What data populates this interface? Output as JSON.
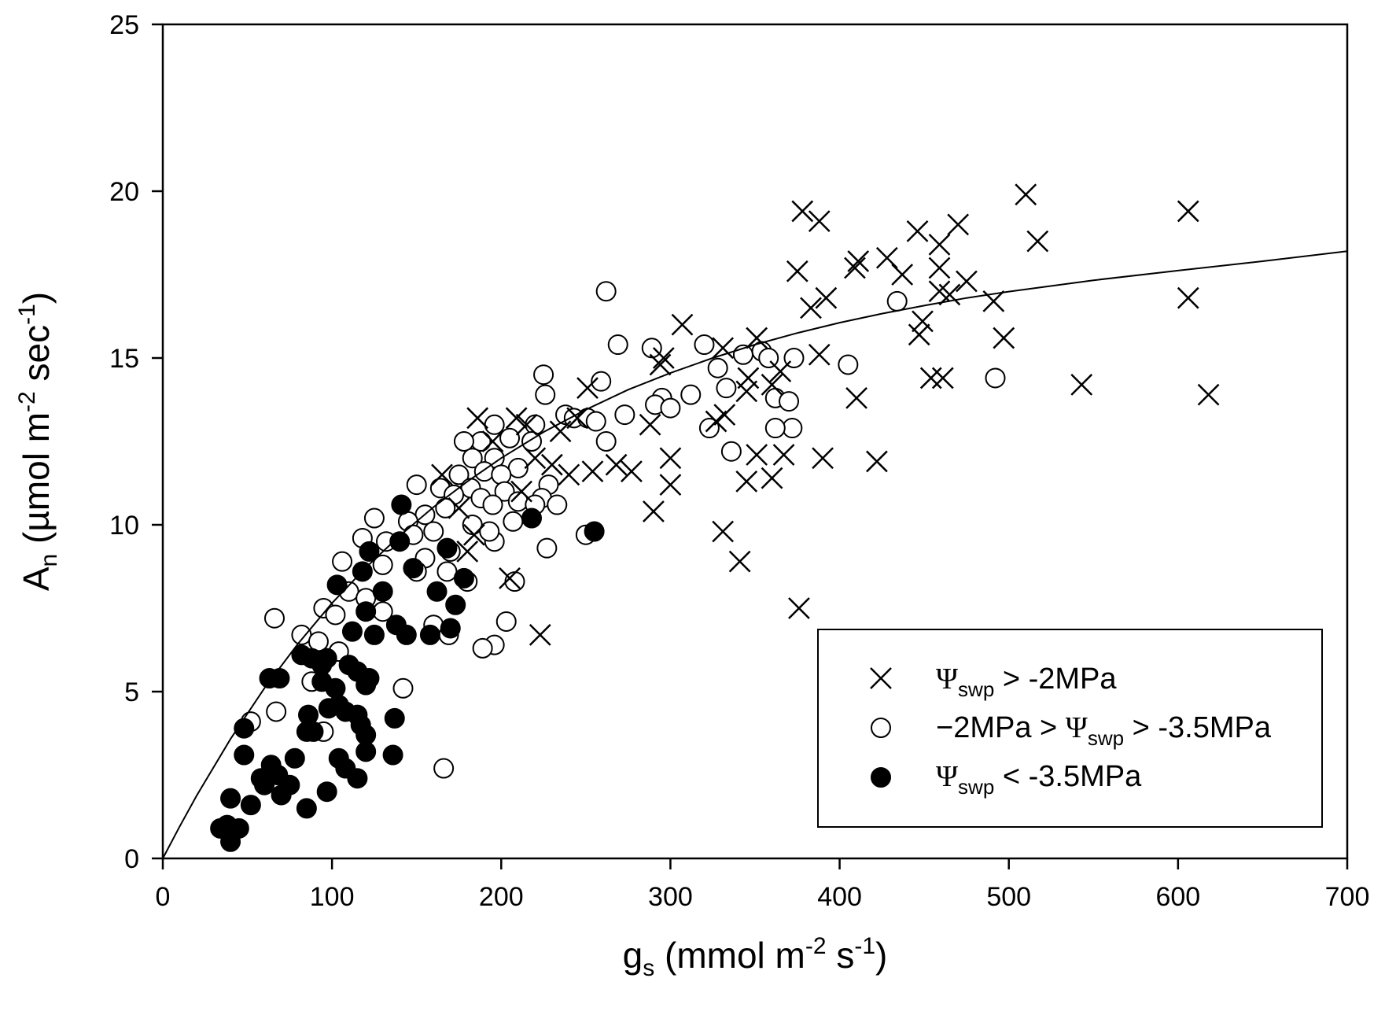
{
  "chart_data": {
    "type": "scatter",
    "title": "",
    "xlabel": {
      "main": "g",
      "sub": "s",
      "unit_a": " (mmol m",
      "sup_a": "-2",
      "unit_b": " s",
      "sup_b": "-1",
      "unit_c": ")"
    },
    "ylabel": {
      "main": "A",
      "sub": "n",
      "unit_a": " (µmol m",
      "sup_a": "-2",
      "unit_b": " sec",
      "sup_b": "-1",
      "unit_c": ")"
    },
    "xlim": [
      0,
      700
    ],
    "ylim": [
      0,
      25
    ],
    "xticks": [
      0,
      100,
      200,
      300,
      400,
      500,
      600,
      700
    ],
    "yticks": [
      0,
      5,
      10,
      15,
      20,
      25
    ],
    "grid": false,
    "legend_position": "bottom-right",
    "fit_curve": {
      "name": "fit",
      "x": [
        0,
        10,
        20,
        40,
        60,
        80,
        100,
        120,
        140,
        160,
        180,
        200,
        225,
        250,
        275,
        300,
        325,
        350,
        375,
        400,
        425,
        450,
        475,
        500,
        550,
        600,
        650,
        700
      ],
      "y": [
        0,
        0.96,
        1.88,
        3.58,
        5.1,
        6.44,
        7.65,
        8.72,
        9.67,
        10.53,
        11.3,
        12.0,
        12.78,
        13.45,
        14.05,
        14.55,
        15.0,
        15.4,
        15.75,
        16.06,
        16.33,
        16.57,
        16.8,
        16.99,
        17.33,
        17.62,
        17.9,
        18.2
      ]
    },
    "series": [
      {
        "name": "Ψswp > -2MPa",
        "label": {
          "sym": "Ψ",
          "sub": "swp",
          "rest": " > -2MPa"
        },
        "marker": "x",
        "points": [
          [
            510,
            19.9
          ],
          [
            378,
            19.4
          ],
          [
            606,
            19.4
          ],
          [
            388,
            19.1
          ],
          [
            470,
            19.0
          ],
          [
            446,
            18.8
          ],
          [
            517,
            18.5
          ],
          [
            459,
            18.4
          ],
          [
            428,
            18.0
          ],
          [
            411,
            17.9
          ],
          [
            409,
            17.7
          ],
          [
            375,
            17.6
          ],
          [
            459,
            17.7
          ],
          [
            437,
            17.5
          ],
          [
            475,
            17.3
          ],
          [
            459,
            17.0
          ],
          [
            465,
            16.9
          ],
          [
            392,
            16.8
          ],
          [
            606,
            16.8
          ],
          [
            383,
            16.5
          ],
          [
            491,
            16.7
          ],
          [
            449,
            16.1
          ],
          [
            307,
            16.0
          ],
          [
            447,
            15.7
          ],
          [
            497,
            15.6
          ],
          [
            351,
            15.6
          ],
          [
            331,
            15.3
          ],
          [
            388,
            15.1
          ],
          [
            296,
            15.0
          ],
          [
            294,
            14.8
          ],
          [
            365,
            14.6
          ],
          [
            346,
            14.4
          ],
          [
            454,
            14.4
          ],
          [
            461,
            14.4
          ],
          [
            543,
            14.2
          ],
          [
            360,
            14.2
          ],
          [
            345,
            14.0
          ],
          [
            618,
            13.9
          ],
          [
            410,
            13.8
          ],
          [
            251,
            14.1
          ],
          [
            245,
            13.2
          ],
          [
            288,
            13.0
          ],
          [
            332,
            13.3
          ],
          [
            327,
            13.1
          ],
          [
            209,
            13.2
          ],
          [
            215,
            13.0
          ],
          [
            186,
            13.2
          ],
          [
            230,
            11.8
          ],
          [
            240,
            11.5
          ],
          [
            268,
            11.8
          ],
          [
            277,
            11.6
          ],
          [
            254,
            11.6
          ],
          [
            300,
            12.0
          ],
          [
            351,
            12.1
          ],
          [
            367,
            12.1
          ],
          [
            390,
            12.0
          ],
          [
            422,
            11.9
          ],
          [
            345,
            11.3
          ],
          [
            360,
            11.4
          ],
          [
            300,
            11.2
          ],
          [
            212,
            11.0
          ],
          [
            184,
            9.7
          ],
          [
            180,
            9.2
          ],
          [
            290,
            10.4
          ],
          [
            331,
            9.8
          ],
          [
            341,
            8.9
          ],
          [
            205,
            8.4
          ],
          [
            376,
            7.5
          ],
          [
            223,
            6.7
          ],
          [
            165,
            11.5
          ],
          [
            175,
            10.5
          ],
          [
            195,
            12.5
          ],
          [
            220,
            12.0
          ],
          [
            235,
            12.8
          ]
        ]
      },
      {
        "name": "−2MPa > Ψswp > -3.5MPa",
        "label": {
          "pre": "−2MPa > ",
          "sym": "Ψ",
          "sub": "swp",
          "rest": " > -3.5MPa"
        },
        "marker": "open-circle",
        "points": [
          [
            262,
            17.0
          ],
          [
            434,
            16.7
          ],
          [
            269,
            15.4
          ],
          [
            289,
            15.3
          ],
          [
            320,
            15.4
          ],
          [
            343,
            15.1
          ],
          [
            354,
            15.2
          ],
          [
            358,
            15.0
          ],
          [
            373,
            15.0
          ],
          [
            405,
            14.8
          ],
          [
            328,
            14.7
          ],
          [
            492,
            14.4
          ],
          [
            225,
            14.5
          ],
          [
            259,
            14.3
          ],
          [
            333,
            14.1
          ],
          [
            312,
            13.9
          ],
          [
            226,
            13.9
          ],
          [
            295,
            13.8
          ],
          [
            362,
            13.8
          ],
          [
            370,
            13.7
          ],
          [
            291,
            13.6
          ],
          [
            300,
            13.5
          ],
          [
            238,
            13.3
          ],
          [
            243,
            13.2
          ],
          [
            251,
            13.2
          ],
          [
            256,
            13.1
          ],
          [
            273,
            13.3
          ],
          [
            372,
            12.9
          ],
          [
            362,
            12.9
          ],
          [
            323,
            12.9
          ],
          [
            220,
            13.0
          ],
          [
            196,
            13.0
          ],
          [
            218,
            12.5
          ],
          [
            205,
            12.6
          ],
          [
            188,
            12.5
          ],
          [
            178,
            12.5
          ],
          [
            262,
            12.5
          ],
          [
            336,
            12.2
          ],
          [
            183,
            12.0
          ],
          [
            196,
            12.0
          ],
          [
            210,
            11.7
          ],
          [
            190,
            11.6
          ],
          [
            175,
            11.5
          ],
          [
            200,
            11.5
          ],
          [
            228,
            11.2
          ],
          [
            150,
            11.2
          ],
          [
            164,
            11.1
          ],
          [
            182,
            11.1
          ],
          [
            202,
            11.0
          ],
          [
            172,
            10.9
          ],
          [
            188,
            10.8
          ],
          [
            210,
            10.7
          ],
          [
            224,
            10.8
          ],
          [
            167,
            10.5
          ],
          [
            195,
            10.6
          ],
          [
            220,
            10.6
          ],
          [
            233,
            10.6
          ],
          [
            155,
            10.3
          ],
          [
            145,
            10.1
          ],
          [
            125,
            10.2
          ],
          [
            183,
            10.0
          ],
          [
            207,
            10.1
          ],
          [
            160,
            9.8
          ],
          [
            148,
            9.7
          ],
          [
            118,
            9.6
          ],
          [
            132,
            9.5
          ],
          [
            196,
            9.5
          ],
          [
            193,
            9.8
          ],
          [
            227,
            9.3
          ],
          [
            250,
            9.7
          ],
          [
            170,
            9.2
          ],
          [
            155,
            9.0
          ],
          [
            106,
            8.9
          ],
          [
            150,
            8.6
          ],
          [
            130,
            8.8
          ],
          [
            180,
            8.3
          ],
          [
            168,
            8.6
          ],
          [
            208,
            8.3
          ],
          [
            110,
            8.0
          ],
          [
            120,
            7.8
          ],
          [
            95,
            7.5
          ],
          [
            102,
            7.3
          ],
          [
            130,
            7.4
          ],
          [
            203,
            7.1
          ],
          [
            160,
            7.0
          ],
          [
            66,
            7.2
          ],
          [
            82,
            6.7
          ],
          [
            92,
            6.5
          ],
          [
            169,
            6.7
          ],
          [
            196,
            6.4
          ],
          [
            189,
            6.3
          ],
          [
            104,
            6.2
          ],
          [
            88,
            5.3
          ],
          [
            142,
            5.1
          ],
          [
            67,
            4.4
          ],
          [
            95,
            3.8
          ],
          [
            52,
            4.1
          ],
          [
            166,
            2.7
          ]
        ]
      },
      {
        "name": "Ψswp < -3.5MPa",
        "label": {
          "sym": "Ψ",
          "sub": "swp",
          "rest": " < -3.5MPa"
        },
        "marker": "filled-circle",
        "points": [
          [
            141,
            10.6
          ],
          [
            140,
            9.5
          ],
          [
            122,
            9.2
          ],
          [
            218,
            10.2
          ],
          [
            255,
            9.8
          ],
          [
            168,
            9.3
          ],
          [
            118,
            8.6
          ],
          [
            148,
            8.7
          ],
          [
            178,
            8.4
          ],
          [
            103,
            8.2
          ],
          [
            130,
            8.0
          ],
          [
            162,
            8.0
          ],
          [
            173,
            7.6
          ],
          [
            120,
            7.4
          ],
          [
            138,
            7.0
          ],
          [
            125,
            6.7
          ],
          [
            112,
            6.8
          ],
          [
            144,
            6.7
          ],
          [
            158,
            6.7
          ],
          [
            170,
            6.9
          ],
          [
            82,
            6.1
          ],
          [
            88,
            6.0
          ],
          [
            94,
            5.8
          ],
          [
            97,
            6.0
          ],
          [
            110,
            5.8
          ],
          [
            115,
            5.6
          ],
          [
            120,
            5.2
          ],
          [
            122,
            5.4
          ],
          [
            94,
            5.3
          ],
          [
            102,
            5.1
          ],
          [
            63,
            5.4
          ],
          [
            69,
            5.4
          ],
          [
            86,
            4.3
          ],
          [
            108,
            4.4
          ],
          [
            98,
            4.5
          ],
          [
            104,
            4.6
          ],
          [
            115,
            4.3
          ],
          [
            117,
            4.0
          ],
          [
            137,
            4.2
          ],
          [
            85,
            3.8
          ],
          [
            89,
            3.8
          ],
          [
            48,
            3.9
          ],
          [
            120,
            3.7
          ],
          [
            136,
            3.1
          ],
          [
            120,
            3.2
          ],
          [
            104,
            3.0
          ],
          [
            78,
            3.0
          ],
          [
            48,
            3.1
          ],
          [
            64,
            2.8
          ],
          [
            68,
            2.5
          ],
          [
            58,
            2.4
          ],
          [
            75,
            2.2
          ],
          [
            60,
            2.2
          ],
          [
            115,
            2.4
          ],
          [
            70,
            1.9
          ],
          [
            52,
            1.6
          ],
          [
            40,
            1.8
          ],
          [
            85,
            1.5
          ],
          [
            97,
            2.0
          ],
          [
            34,
            0.9
          ],
          [
            38,
            1.0
          ],
          [
            45,
            0.9
          ],
          [
            40,
            0.5
          ],
          [
            108,
            2.7
          ]
        ]
      }
    ]
  }
}
